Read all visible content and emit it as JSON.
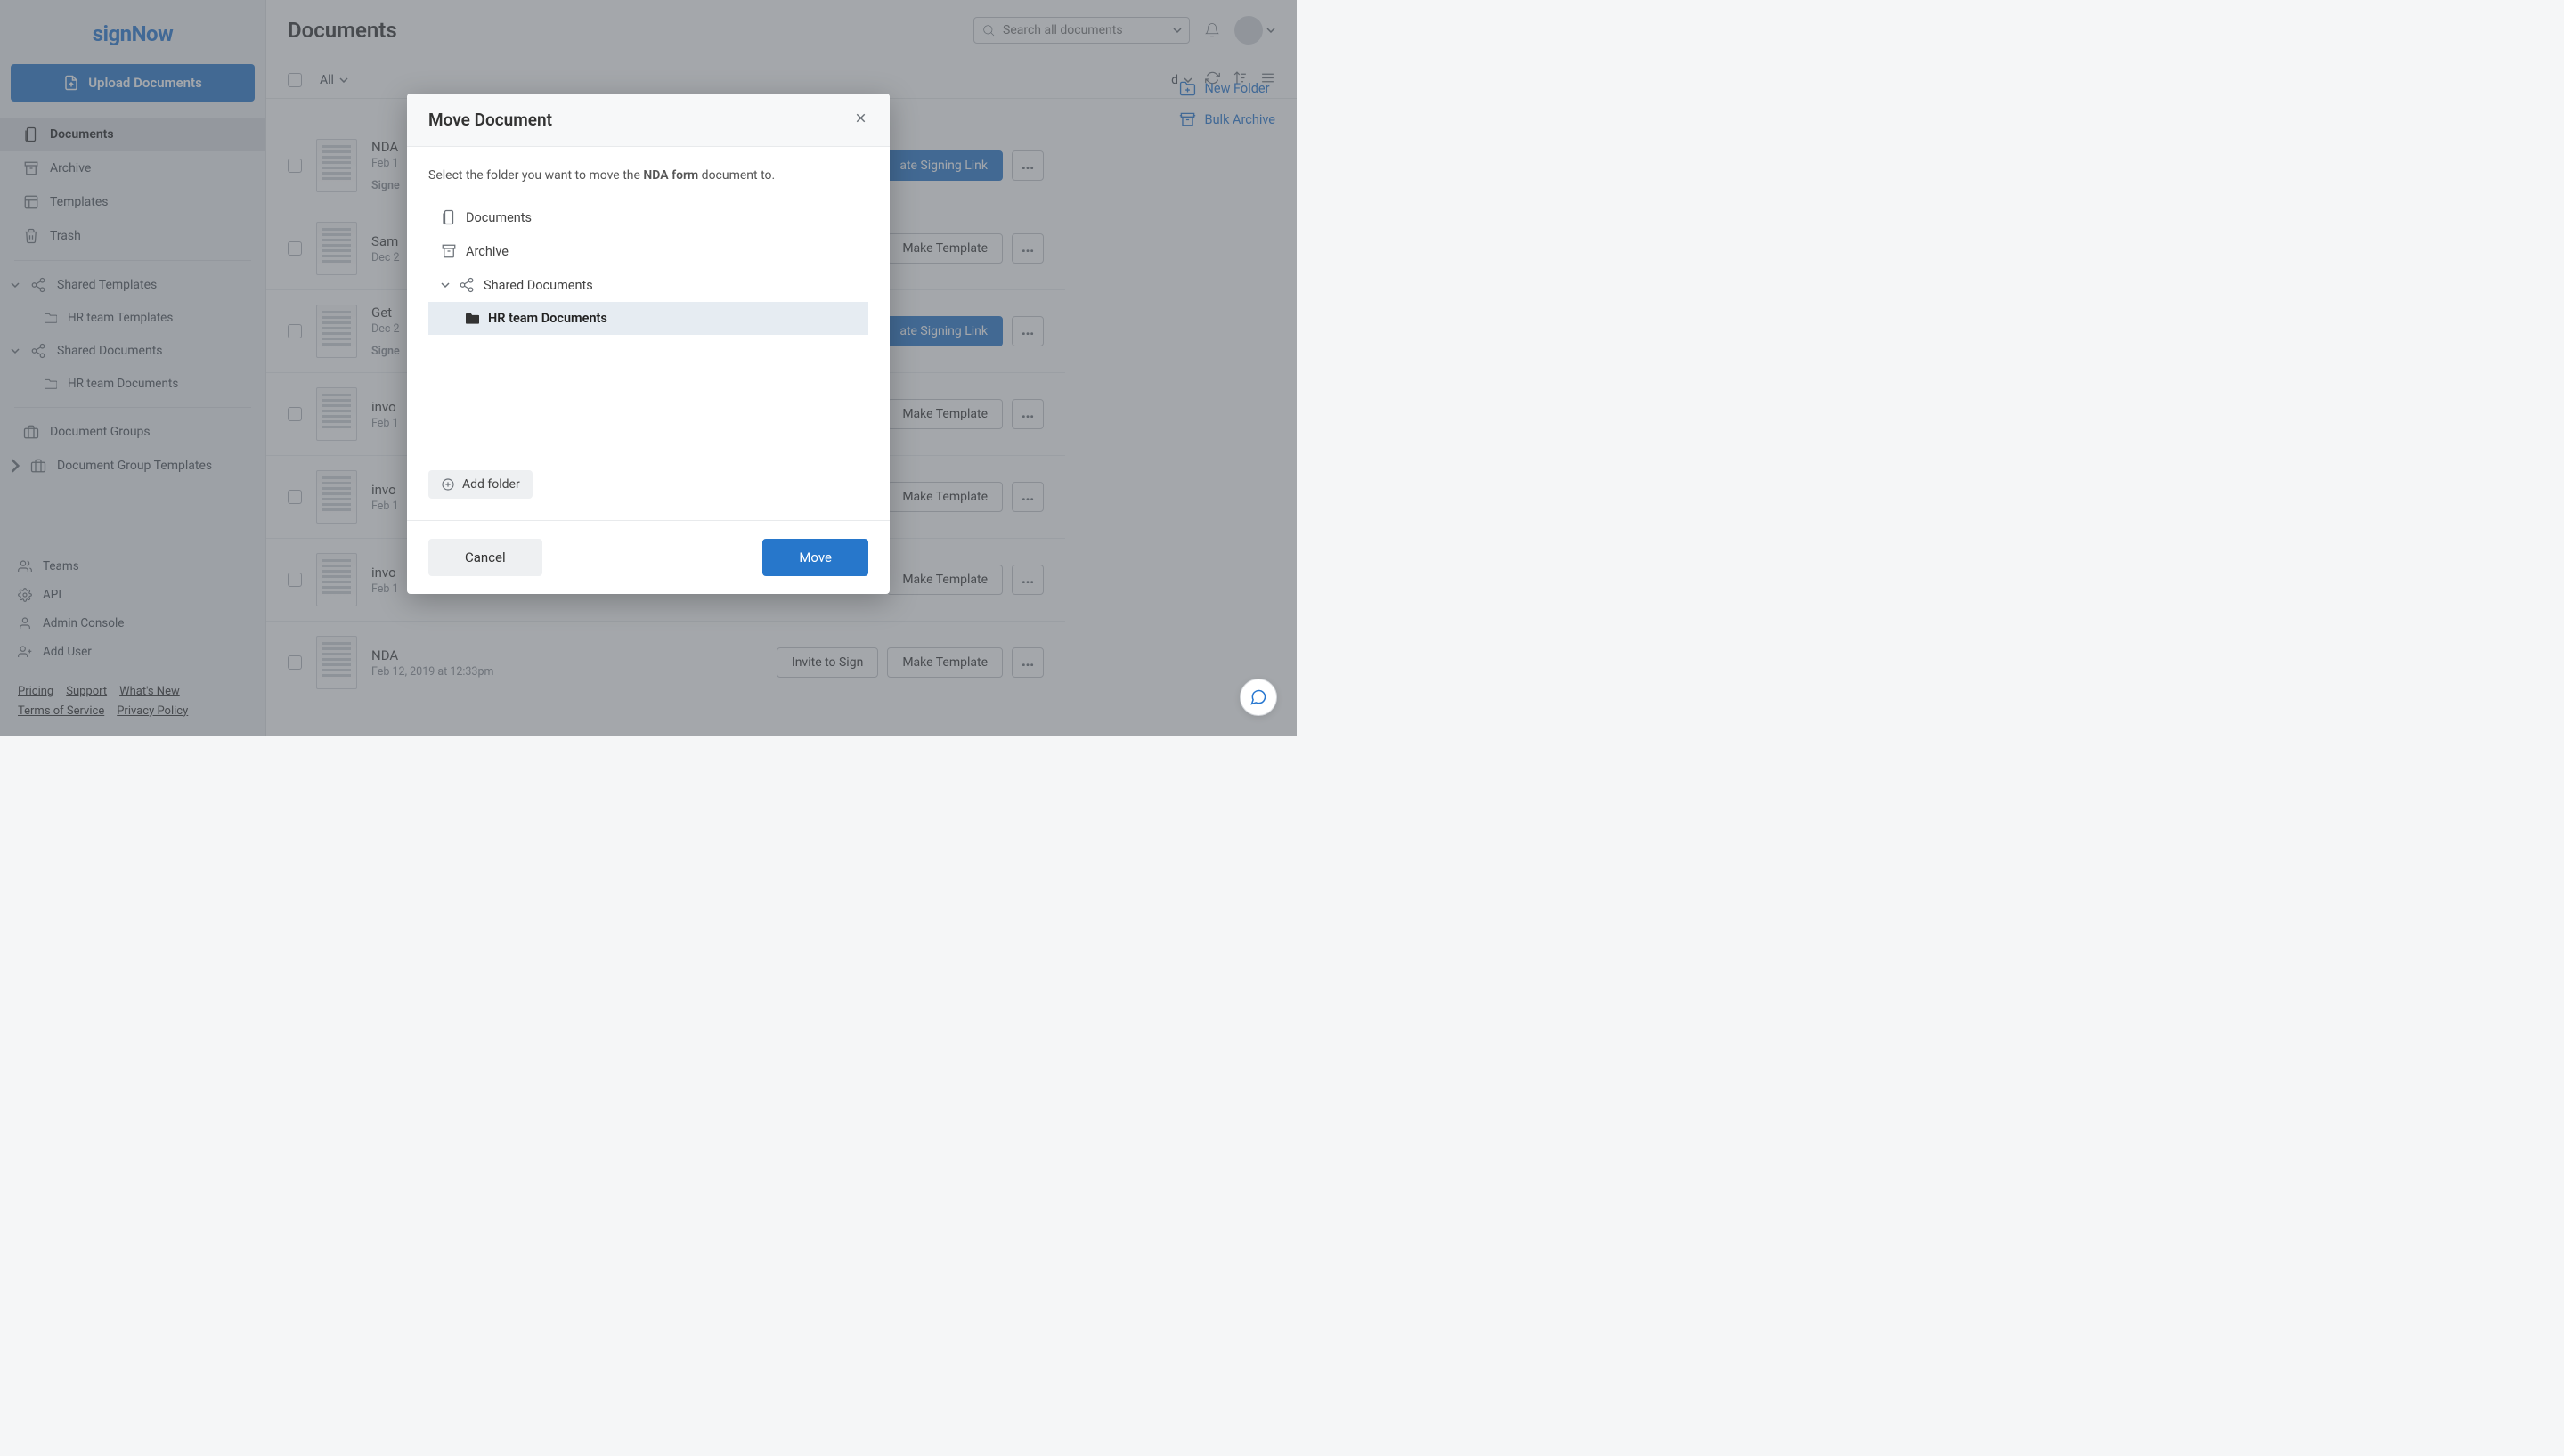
{
  "brand": "signNow",
  "upload_btn": "Upload Documents",
  "sidebar": {
    "main": [
      {
        "icon": "docs",
        "label": "Documents",
        "active": true
      },
      {
        "icon": "archive",
        "label": "Archive"
      },
      {
        "icon": "templates",
        "label": "Templates"
      },
      {
        "icon": "trash",
        "label": "Trash"
      }
    ],
    "shared": [
      {
        "icon": "share",
        "label": "Shared Templates",
        "children": [
          {
            "label": "HR team Templates"
          }
        ]
      },
      {
        "icon": "share",
        "label": "Shared Documents",
        "children": [
          {
            "label": "HR team Documents"
          }
        ]
      }
    ],
    "groups": [
      {
        "icon": "briefcase",
        "label": "Document Groups"
      },
      {
        "icon": "briefcase",
        "label": "Document Group Templates",
        "caret": true
      }
    ],
    "bottom": [
      {
        "icon": "teams",
        "label": "Teams"
      },
      {
        "icon": "gear",
        "label": "API"
      },
      {
        "icon": "user",
        "label": "Admin Console"
      },
      {
        "icon": "adduser",
        "label": "Add User"
      }
    ],
    "footer": [
      "Pricing",
      "Support",
      "What's New",
      "Terms of Service",
      "Privacy Policy"
    ]
  },
  "page_title": "Documents",
  "search_placeholder": "Search all documents",
  "toolbar": {
    "filter": "All",
    "sort": ""
  },
  "right_actions": [
    {
      "icon": "newfolder",
      "label": "New Folder"
    },
    {
      "icon": "bulkarchive",
      "label": "Bulk Archive"
    }
  ],
  "docs": [
    {
      "name": "NDA",
      "date": "Feb 1",
      "status": "Signe",
      "primary": "ate Signing Link",
      "primaryStyle": "primary"
    },
    {
      "name": "Sam",
      "date": "Dec 2",
      "primary": "Make Template"
    },
    {
      "name": "Get",
      "date": "Dec 2",
      "status": "Signe",
      "primary": "ate Signing Link",
      "primaryStyle": "primary"
    },
    {
      "name": "invo",
      "date": "Feb 1",
      "primary": "Make Template"
    },
    {
      "name": "invo",
      "date": "Feb 1",
      "primary": "Make Template"
    },
    {
      "name": "invo",
      "date": "Feb 1",
      "primary": "Make Template"
    },
    {
      "name": "NDA",
      "date": "Feb 12, 2019 at 12:33pm",
      "invite": "Invite to Sign",
      "primary": "Make Template"
    }
  ],
  "modal": {
    "title": "Move Document",
    "hint_pre": "Select the folder you want to move the ",
    "hint_doc": "NDA form",
    "hint_post": " document to.",
    "tree": [
      {
        "icon": "docs",
        "label": "Documents"
      },
      {
        "icon": "archive",
        "label": "Archive"
      },
      {
        "icon": "share",
        "label": "Shared Documents",
        "caret": true
      },
      {
        "icon": "folder",
        "label": "HR team Documents",
        "selected": true,
        "indent": 2
      }
    ],
    "add_folder": "Add folder",
    "cancel": "Cancel",
    "move": "Move"
  }
}
